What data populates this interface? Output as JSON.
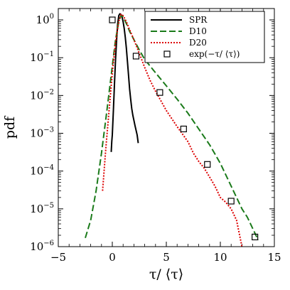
{
  "chart_data": {
    "type": "line",
    "title": "",
    "xlabel": "τ/ ⟨τ⟩",
    "ylabel": "pdf",
    "xlim": [
      -5,
      15
    ],
    "ylim": [
      1e-06,
      2
    ],
    "yscale": "log",
    "grid": false,
    "legend_position": "top-right",
    "x_ticks": [
      -5,
      0,
      5,
      10,
      15
    ],
    "x_tick_labels": [
      "−5",
      "0",
      "5",
      "10",
      "15"
    ],
    "y_ticks": [
      1e-06,
      1e-05,
      0.0001,
      0.001,
      0.01,
      0.1,
      1
    ],
    "y_tick_labels": [
      {
        "base": "10",
        "exp": "−6"
      },
      {
        "base": "10",
        "exp": "−5"
      },
      {
        "base": "10",
        "exp": "−4"
      },
      {
        "base": "10",
        "exp": "−3"
      },
      {
        "base": "10",
        "exp": "−2"
      },
      {
        "base": "10",
        "exp": "−1"
      },
      {
        "base": "10",
        "exp": "0"
      }
    ],
    "series": [
      {
        "name": "SPR",
        "style": "solid",
        "color": "#000000",
        "x": [
          -0.1,
          -0.05,
          0.0,
          0.1,
          0.2,
          0.3,
          0.4,
          0.5,
          0.6,
          0.7,
          0.8,
          0.9,
          1.0,
          1.1,
          1.2,
          1.3,
          1.4,
          1.5,
          1.6,
          1.7,
          1.8,
          1.9,
          2.0,
          2.1,
          2.2,
          2.3,
          2.4
        ],
        "y": [
          0.00032,
          0.0006,
          0.0009,
          0.004,
          0.02,
          0.09,
          0.3,
          0.8,
          1.3,
          1.45,
          1.4,
          1.2,
          0.9,
          0.6,
          0.35,
          0.18,
          0.08,
          0.035,
          0.015,
          0.008,
          0.0045,
          0.003,
          0.0022,
          0.0016,
          0.0012,
          0.0009,
          0.00055
        ]
      },
      {
        "name": "D10",
        "style": "dashed",
        "color": "#1a7a1a",
        "x": [
          -2.5,
          -2.0,
          -1.5,
          -1.0,
          -0.5,
          0.0,
          0.3,
          0.6,
          0.8,
          1.0,
          1.3,
          1.6,
          2.0,
          2.5,
          3.0,
          4.0,
          5.0,
          6.0,
          7.0,
          8.0,
          9.0,
          10.0,
          10.5,
          11.0,
          11.5,
          12.0,
          12.5,
          13.0,
          13.5
        ],
        "y": [
          1.7e-06,
          5e-06,
          3e-05,
          0.0003,
          0.004,
          0.06,
          0.3,
          0.9,
          1.3,
          1.2,
          0.8,
          0.5,
          0.3,
          0.16,
          0.09,
          0.04,
          0.018,
          0.008,
          0.0034,
          0.0013,
          0.0005,
          0.00016,
          8e-05,
          4e-05,
          2e-05,
          1e-05,
          6e-06,
          3e-06,
          1.5e-06
        ]
      },
      {
        "name": "D20",
        "style": "dotted",
        "color": "#dd0000",
        "x": [
          -0.9,
          -0.6,
          -0.3,
          0.0,
          0.3,
          0.6,
          0.8,
          1.0,
          1.3,
          1.6,
          2.0,
          2.5,
          3.0,
          3.5,
          4.0,
          5.0,
          6.0,
          7.0,
          7.5,
          8.0,
          8.5,
          9.0,
          9.5,
          10.0,
          10.5,
          11.0,
          11.5,
          12.0
        ],
        "y": [
          3e-05,
          0.0004,
          0.004,
          0.04,
          0.25,
          0.9,
          1.4,
          1.3,
          0.9,
          0.55,
          0.3,
          0.13,
          0.055,
          0.025,
          0.013,
          0.004,
          0.0015,
          0.0006,
          0.0003,
          0.00018,
          0.00012,
          7e-05,
          4e-05,
          2e-05,
          1.5e-05,
          1e-05,
          5e-06,
          1e-06
        ]
      },
      {
        "name": "exp(−τ/ ⟨τ⟩)",
        "style": "markers",
        "marker": "square",
        "color": "#000000",
        "x": [
          0.0,
          2.2,
          4.4,
          6.6,
          8.8,
          11.0,
          13.2
        ],
        "y": [
          1.0,
          0.11,
          0.012,
          0.0013,
          0.00015,
          1.6e-05,
          1.8e-06
        ]
      }
    ]
  }
}
